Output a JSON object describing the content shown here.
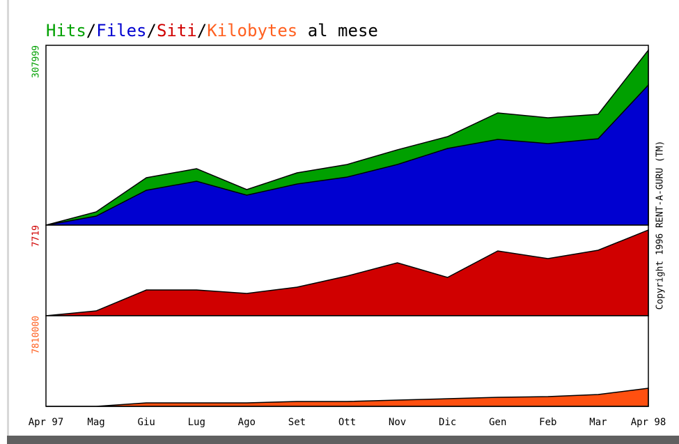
{
  "chart_data": {
    "type": "area",
    "title": [
      {
        "text": "Hits",
        "color": "#00a000"
      },
      {
        "text": "/",
        "color": "#000000"
      },
      {
        "text": "Files",
        "color": "#0000d0"
      },
      {
        "text": "/",
        "color": "#000000"
      },
      {
        "text": "Siti",
        "color": "#d00000"
      },
      {
        "text": "/",
        "color": "#000000"
      },
      {
        "text": "Kilobytes",
        "color": "#ff6020"
      },
      {
        "text": " al mese",
        "color": "#000000"
      }
    ],
    "credit": "Copyright 1996 RENT-A-GURU (TM)",
    "categories": [
      "Apr 97",
      "Mag",
      "Giu",
      "Lug",
      "Ago",
      "Set",
      "Ott",
      "Nov",
      "Dic",
      "Gen",
      "Feb",
      "Mar",
      "Apr 98"
    ],
    "panels": [
      {
        "ylim": [
          0,
          307999
        ],
        "yticks": [
          307999
        ],
        "tick_color": "#00a000",
        "series": [
          {
            "name": "Hits",
            "color": "#00a000",
            "values": [
              0,
              22700,
              81200,
              96700,
              60900,
              89500,
              103900,
              129000,
              151600,
              192200,
              183900,
              189800,
              299700
            ]
          },
          {
            "name": "Files",
            "color": "#0000d0",
            "values": [
              0,
              15500,
              59700,
              75200,
              51300,
              70400,
              82400,
              103900,
              131300,
              146800,
              139700,
              148000,
              240000
            ]
          }
        ]
      },
      {
        "ylim": [
          0,
          7719
        ],
        "yticks": [
          7719
        ],
        "tick_color": "#d00000",
        "series": [
          {
            "name": "Siti",
            "color": "#d00000",
            "values": [
              0,
              415,
              2197,
              2197,
              1900,
              2434,
              3385,
              4513,
              3266,
              5523,
              4869,
              5582,
              7304
            ]
          }
        ]
      },
      {
        "ylim": [
          0,
          7810000
        ],
        "yticks": [
          7810000
        ],
        "tick_color": "#ff6020",
        "series": [
          {
            "name": "Kilobytes",
            "color": "#ff5010",
            "values": [
              0,
              0,
              300000,
              300000,
              300000,
              420000,
              420000,
              540000,
              660000,
              780000,
              840000,
              1020000,
              1560000
            ]
          }
        ]
      }
    ]
  }
}
